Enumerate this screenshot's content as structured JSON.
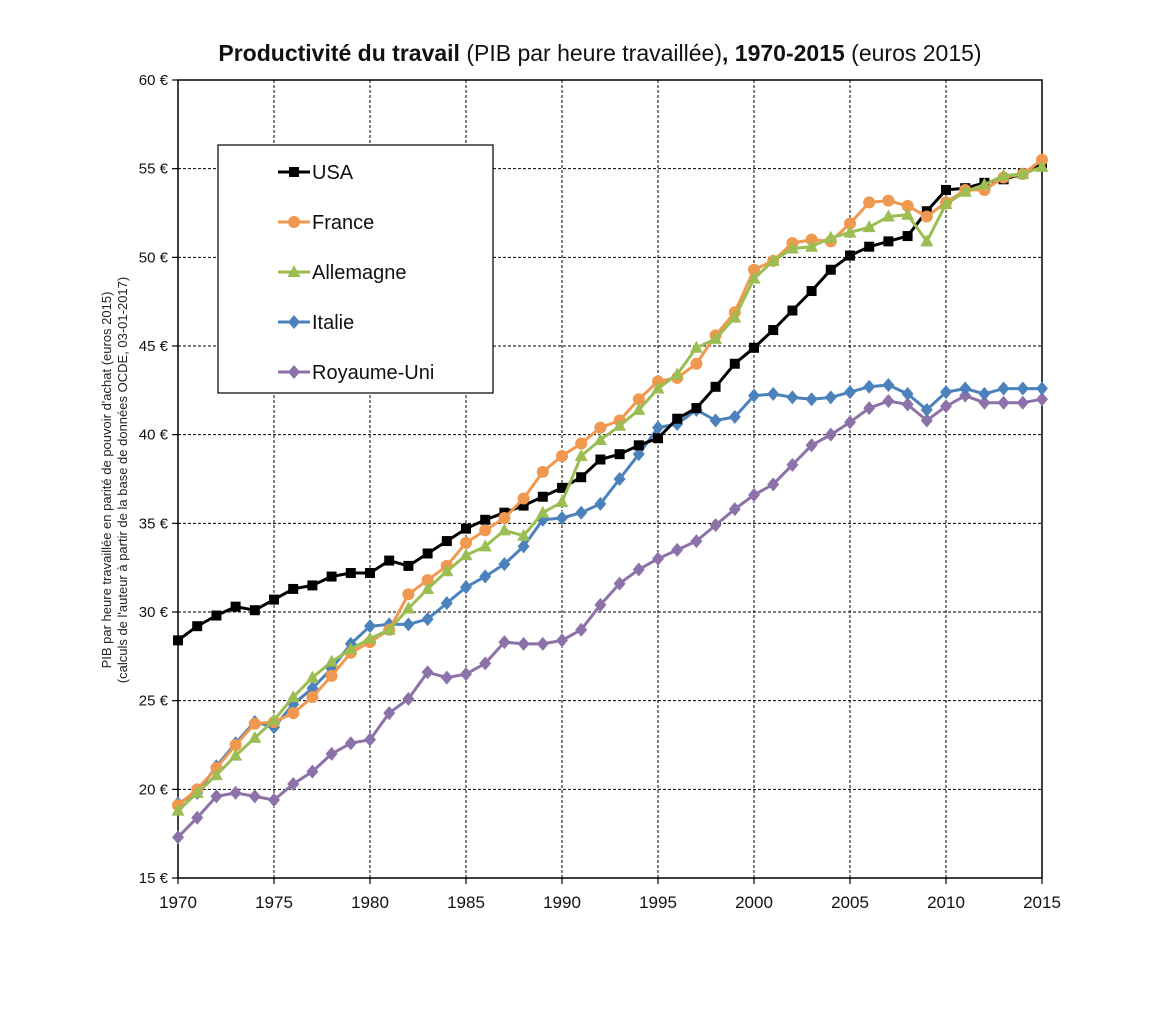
{
  "chart_data": {
    "type": "line",
    "title_parts": [
      {
        "text": "Productivité du travail",
        "bold": true
      },
      {
        "text": " (PIB par heure travaillée)",
        "bold": false
      },
      {
        "text": ", 1970-2015",
        "bold": true
      },
      {
        "text": " (euros 2015)",
        "bold": false
      }
    ],
    "ylabel_line1": "PIB par heure travaillée en parité de pouvoir d'achat (euros 2015)",
    "ylabel_line2": "(calculs de l'auteur à partir de la base de données OCDE, 03-01-2017)",
    "xlim": [
      1970,
      2015
    ],
    "ylim": [
      15,
      60
    ],
    "x_ticks": [
      1970,
      1975,
      1980,
      1985,
      1990,
      1995,
      2000,
      2005,
      2010,
      2015
    ],
    "y_ticks": [
      15,
      20,
      25,
      30,
      35,
      40,
      45,
      50,
      55,
      60
    ],
    "y_tick_labels": [
      "15 €",
      "20 €",
      "25 €",
      "30 €",
      "35 €",
      "40 €",
      "45 €",
      "50 €",
      "55 €",
      "60 €"
    ],
    "grid": true,
    "legend_position": "top-left",
    "x": [
      1970,
      1971,
      1972,
      1973,
      1974,
      1975,
      1976,
      1977,
      1978,
      1979,
      1980,
      1981,
      1982,
      1983,
      1984,
      1985,
      1986,
      1987,
      1988,
      1989,
      1990,
      1991,
      1992,
      1993,
      1994,
      1995,
      1996,
      1997,
      1998,
      1999,
      2000,
      2001,
      2002,
      2003,
      2004,
      2005,
      2006,
      2007,
      2008,
      2009,
      2010,
      2011,
      2012,
      2013,
      2014,
      2015
    ],
    "series": [
      {
        "name": "USA",
        "color": "#000000",
        "marker": "square",
        "values": [
          28.4,
          29.2,
          29.8,
          30.3,
          30.1,
          30.7,
          31.3,
          31.5,
          32.0,
          32.2,
          32.2,
          32.9,
          32.6,
          33.3,
          34.0,
          34.7,
          35.2,
          35.6,
          36.0,
          36.5,
          37.0,
          37.6,
          38.6,
          38.9,
          39.4,
          39.8,
          40.9,
          41.5,
          42.7,
          44.0,
          44.9,
          45.9,
          47.0,
          48.1,
          49.3,
          50.1,
          50.6,
          50.9,
          51.2,
          52.6,
          53.8,
          53.9,
          54.2,
          54.4,
          54.7,
          55.3
        ]
      },
      {
        "name": "France",
        "color": "#f0984f",
        "marker": "circle",
        "values": [
          19.1,
          20.0,
          21.2,
          22.5,
          23.7,
          23.8,
          24.3,
          25.2,
          26.4,
          27.7,
          28.3,
          29.0,
          31.0,
          31.8,
          32.6,
          33.9,
          34.6,
          35.3,
          36.4,
          37.9,
          38.8,
          39.5,
          40.4,
          40.8,
          42.0,
          43.0,
          43.2,
          44.0,
          45.6,
          46.9,
          49.3,
          49.8,
          50.8,
          51.0,
          50.9,
          51.9,
          53.1,
          53.2,
          52.9,
          52.3,
          53.1,
          53.8,
          53.8,
          54.5,
          54.7,
          55.5
        ]
      },
      {
        "name": "Allemagne",
        "color": "#9bbd52",
        "marker": "triangle",
        "values": [
          18.8,
          19.8,
          20.8,
          21.9,
          22.9,
          23.9,
          25.2,
          26.3,
          27.2,
          27.9,
          28.5,
          29.0,
          30.2,
          31.3,
          32.3,
          33.2,
          33.7,
          34.6,
          34.3,
          35.6,
          36.2,
          38.8,
          39.7,
          40.5,
          41.4,
          42.6,
          43.4,
          44.9,
          45.4,
          46.6,
          48.8,
          49.8,
          50.5,
          50.6,
          51.1,
          51.4,
          51.7,
          52.3,
          52.4,
          50.9,
          53.0,
          53.7,
          54.1,
          54.6,
          54.7,
          55.1
        ]
      },
      {
        "name": "Italie",
        "color": "#4b82bc",
        "marker": "diamond",
        "values": [
          19.2,
          19.8,
          21.3,
          22.6,
          23.8,
          23.5,
          24.8,
          25.7,
          26.8,
          28.2,
          29.2,
          29.3,
          29.3,
          29.6,
          30.5,
          31.4,
          32.0,
          32.7,
          33.7,
          35.2,
          35.3,
          35.6,
          36.1,
          37.5,
          38.9,
          40.4,
          40.6,
          41.4,
          40.8,
          41.0,
          42.2,
          42.3,
          42.1,
          42.0,
          42.1,
          42.4,
          42.7,
          42.8,
          42.3,
          41.4,
          42.4,
          42.6,
          42.3,
          42.6,
          42.6,
          42.6
        ]
      },
      {
        "name": "Royaume-Uni",
        "color": "#8c72a8",
        "marker": "diamond",
        "values": [
          17.3,
          18.4,
          19.6,
          19.8,
          19.6,
          19.4,
          20.3,
          21.0,
          22.0,
          22.6,
          22.8,
          24.3,
          25.1,
          26.6,
          26.3,
          26.5,
          27.1,
          28.3,
          28.2,
          28.2,
          28.4,
          29.0,
          30.4,
          31.6,
          32.4,
          33.0,
          33.5,
          34.0,
          34.9,
          35.8,
          36.6,
          37.2,
          38.3,
          39.4,
          40.0,
          40.7,
          41.5,
          41.9,
          41.7,
          40.8,
          41.6,
          42.2,
          41.8,
          41.8,
          41.8,
          42.0
        ]
      }
    ]
  }
}
